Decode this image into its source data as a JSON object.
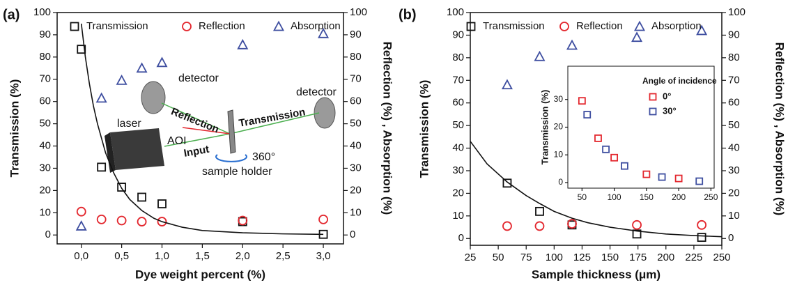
{
  "chart_data": [
    {
      "type": "scatter",
      "label": "(a)",
      "x_label": "Dye weight percent (%)",
      "y_label": "Transmission (%)",
      "y2_label": "Reflection (%) , Absorption (%)",
      "x": [
        0,
        0.25,
        0.5,
        0.75,
        1.0,
        2.0,
        3.0
      ],
      "xlim": [
        -0.3,
        3.25
      ],
      "xticks": [
        {
          "value": 0,
          "label": "0,0"
        },
        {
          "value": 0.5,
          "label": "0,5"
        },
        {
          "value": 1.0,
          "label": "1,0"
        },
        {
          "value": 1.5,
          "label": "1,5"
        },
        {
          "value": 2.0,
          "label": "2,0"
        },
        {
          "value": 2.5,
          "label": "2,5"
        },
        {
          "value": 3.0,
          "label": "3,0"
        }
      ],
      "ylim": [
        -4,
        100
      ],
      "yticks": [
        0,
        10,
        20,
        30,
        40,
        50,
        60,
        70,
        80,
        90,
        100
      ],
      "y2lim": [
        -4,
        100
      ],
      "y2ticks": [
        0,
        10,
        20,
        30,
        40,
        50,
        60,
        70,
        80,
        90,
        100
      ],
      "series": [
        {
          "name": "Transmission",
          "color": "#111111",
          "marker": "square",
          "values": [
            83.5,
            30.5,
            21.5,
            17,
            14,
            6,
            0.3
          ]
        },
        {
          "name": "Reflection",
          "color": "#e3262d",
          "marker": "circle",
          "axis": "y2",
          "values": [
            10.5,
            7,
            6.5,
            6,
            6,
            6.5,
            7
          ]
        },
        {
          "name": "Absorption",
          "color": "#3e4ea0",
          "marker": "triangle",
          "axis": "y2",
          "values": [
            4,
            61.5,
            69.5,
            75,
            77.5,
            85.5,
            90.5
          ]
        },
        {
          "color": "#111111",
          "marker": "line",
          "x": [
            0,
            0.05,
            0.1,
            0.15,
            0.2,
            0.3,
            0.4,
            0.5,
            0.6,
            0.75,
            0.9,
            1.0,
            1.25,
            1.5,
            2.0,
            2.5,
            3.0
          ],
          "values": [
            95,
            80,
            68,
            58,
            50,
            37,
            28,
            21,
            16,
            11,
            7.5,
            6,
            3.5,
            2,
            1,
            0.5,
            0.3
          ]
        }
      ],
      "annotations": [
        "detector",
        "detector",
        "Reflection",
        "Transmission",
        "laser",
        "AOI",
        "Input",
        "360°",
        "sample holder"
      ]
    },
    {
      "type": "scatter",
      "label": "(b)",
      "x_label": "Sample thickness (μm)",
      "y_label": "Transmission (%)",
      "y2_label": "Reflection (%) , Absorption (%)",
      "x": [
        58,
        87,
        116,
        174,
        232
      ],
      "xlim": [
        25,
        250
      ],
      "xticks": [
        25,
        50,
        75,
        100,
        125,
        150,
        175,
        200,
        225,
        250
      ],
      "ylim": [
        -3,
        100
      ],
      "yticks": [
        0,
        10,
        20,
        30,
        40,
        50,
        60,
        70,
        80,
        90,
        100
      ],
      "y2lim": [
        -3,
        100
      ],
      "y2ticks": [
        0,
        10,
        20,
        30,
        40,
        50,
        60,
        70,
        80,
        90,
        100
      ],
      "series": [
        {
          "name": "Transmission",
          "color": "#111111",
          "marker": "square",
          "values": [
            24.5,
            12,
            6,
            2,
            0.5
          ]
        },
        {
          "name": "Reflection",
          "color": "#e3262d",
          "marker": "circle",
          "axis": "y2",
          "values": [
            5.5,
            5.5,
            6.5,
            6,
            6
          ]
        },
        {
          "name": "Absorption",
          "color": "#3e4ea0",
          "marker": "triangle",
          "axis": "y2",
          "values": [
            68,
            80.5,
            85.5,
            89,
            92
          ]
        },
        {
          "color": "#111111",
          "marker": "line",
          "x": [
            25,
            40,
            58,
            75,
            87,
            100,
            116,
            130,
            150,
            174,
            200,
            225,
            250
          ],
          "values": [
            43,
            33,
            25,
            19,
            15.5,
            12,
            9,
            7,
            5,
            3.3,
            2,
            1.3,
            0.8
          ]
        }
      ]
    },
    {
      "type": "scatter",
      "y_label": "Transmission (%)",
      "legend_title": "Angle of incidence",
      "xlim": [
        28,
        255
      ],
      "xticks": [
        50,
        100,
        150,
        200,
        250
      ],
      "ylim": [
        -2,
        42
      ],
      "yticks": [
        0,
        10,
        20,
        30
      ],
      "series": [
        {
          "name": "0°",
          "color": "#e3262d",
          "marker": "square",
          "x": [
            50,
            75,
            100,
            150,
            200
          ],
          "values": [
            29.5,
            16,
            9,
            3,
            1.5
          ]
        },
        {
          "name": "30°",
          "color": "#3e4ea0",
          "marker": "square",
          "x": [
            58,
            87,
            116,
            174,
            232
          ],
          "values": [
            24.5,
            12,
            6,
            2,
            0.5
          ]
        }
      ]
    }
  ]
}
